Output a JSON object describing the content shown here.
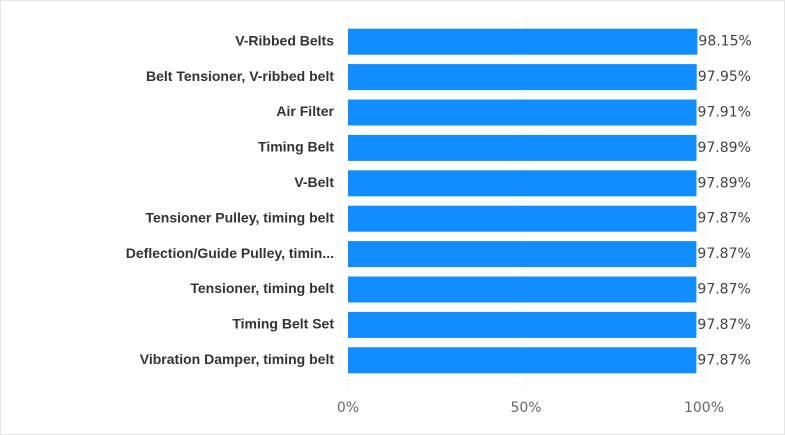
{
  "chart_data": {
    "type": "bar",
    "orientation": "horizontal",
    "categories": [
      "V-Ribbed Belts",
      "Belt Tensioner, V-ribbed belt",
      "Air Filter",
      "Timing Belt",
      "V-Belt",
      "Tensioner Pulley, timing belt",
      "Deflection/Guide Pulley, timin...",
      "Tensioner, timing belt",
      "Timing Belt Set",
      "Vibration Damper, timing belt"
    ],
    "values": [
      98.15,
      97.95,
      97.91,
      97.89,
      97.89,
      97.87,
      97.87,
      97.87,
      97.87,
      97.87
    ],
    "value_labels": [
      "98.15%",
      "97.95%",
      "97.91%",
      "97.89%",
      "97.89%",
      "97.87%",
      "97.87%",
      "97.87%",
      "97.87%",
      "97.87%"
    ],
    "color": "#118dff",
    "xlim": [
      0,
      100
    ],
    "xticks": [
      {
        "value": 0,
        "label": "0%"
      },
      {
        "value": 50,
        "label": "50%"
      },
      {
        "value": 100,
        "label": "100%"
      }
    ],
    "grid": true
  }
}
